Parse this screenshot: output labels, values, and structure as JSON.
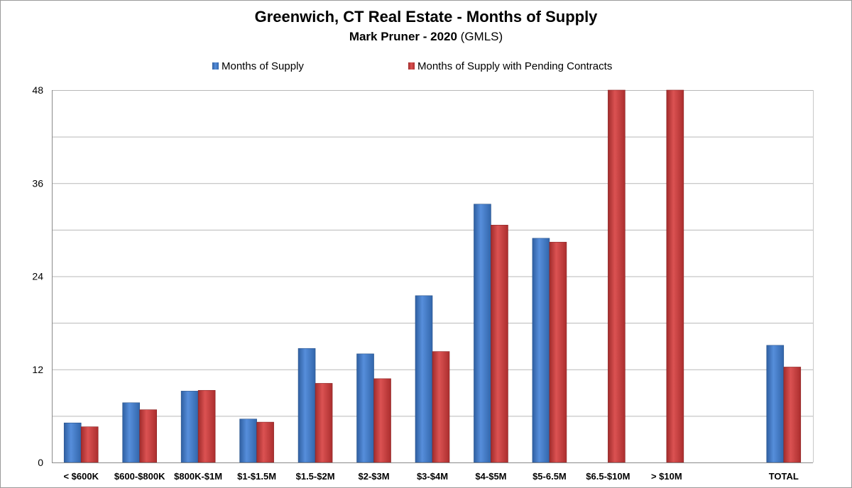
{
  "chart_data": {
    "type": "bar",
    "title": "Greenwich, CT Real Estate - Months of Supply",
    "subtitle_bold": "Mark Pruner -  2020",
    "subtitle_plain": " (GMLS)",
    "categories": [
      "< $600K",
      "$600-$800K",
      "$800K-$1M",
      "$1-$1.5M",
      "$1.5-$2M",
      "$2-$3M",
      "$3-$4M",
      "$4-$5M",
      "$5-6.5M",
      "$6.5-$10M",
      "> $10M",
      "",
      "TOTAL"
    ],
    "series": [
      {
        "name": "Months of Supply",
        "color": "#3f7fd6",
        "values": [
          5.1,
          7.7,
          9.2,
          5.6,
          14.7,
          14.0,
          21.5,
          33.3,
          28.9,
          null,
          null,
          null,
          15.1
        ]
      },
      {
        "name": "Months of Supply with Pending Contracts",
        "color": "#d63a3a",
        "values": [
          4.6,
          6.8,
          9.3,
          5.2,
          10.2,
          10.8,
          14.3,
          30.6,
          28.4,
          48,
          48,
          null,
          12.3
        ]
      }
    ],
    "ylim": [
      0,
      48
    ],
    "yticks": [
      0,
      12,
      24,
      36,
      48
    ],
    "grid": true,
    "legend_position": "top"
  }
}
